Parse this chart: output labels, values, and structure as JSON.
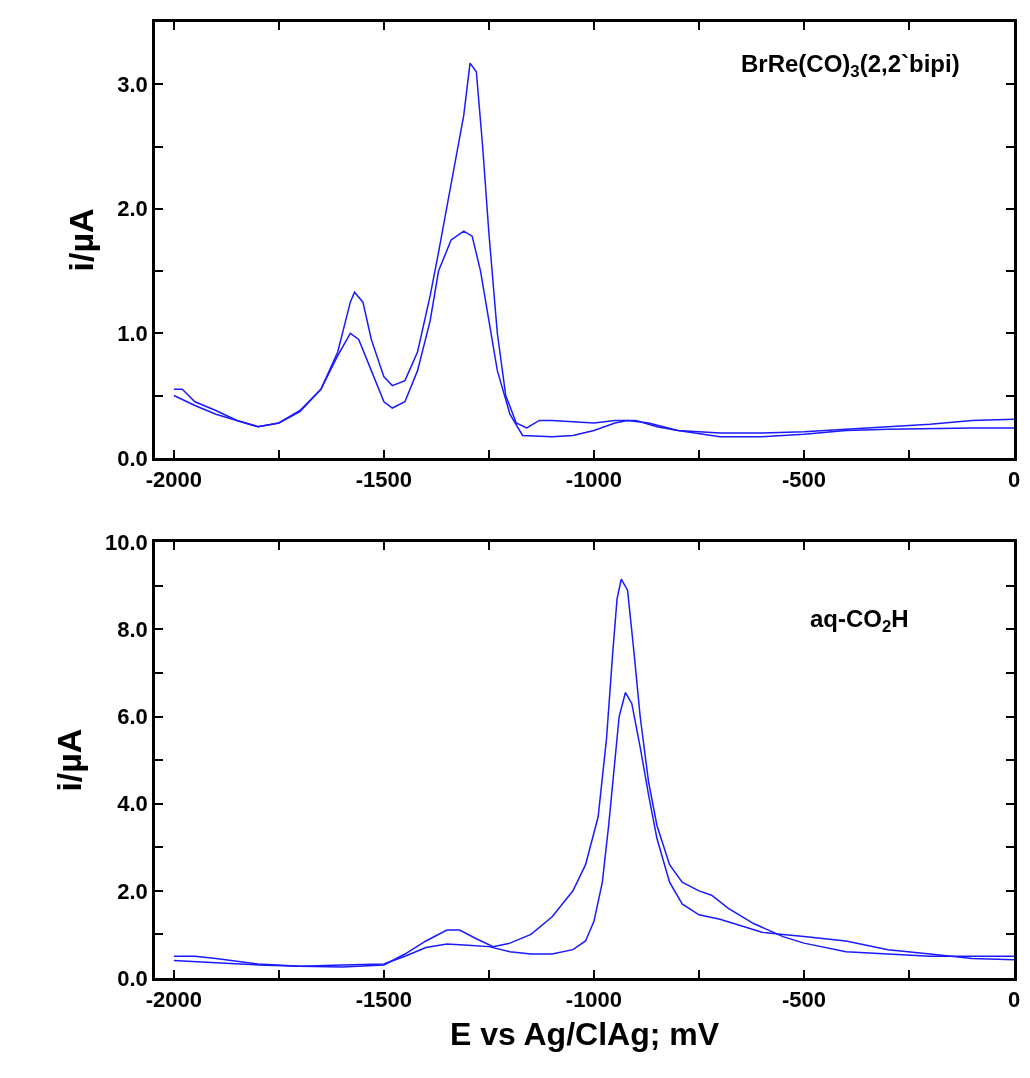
{
  "chart_data": [
    {
      "type": "line",
      "ylabel": "i/µA",
      "annotations": [
        "BrRe(CO)$_{3}$(2,2`bipi)"
      ],
      "xlim": [
        -2045,
        0
      ],
      "xticks": [
        -2000,
        {
          "value": -1750,
          "label": null
        },
        -1500,
        {
          "value": -1250,
          "label": null
        },
        -1000,
        {
          "value": -750,
          "label": null
        },
        -500,
        {
          "value": -250,
          "label": null
        },
        0
      ],
      "ylim": [
        0,
        3.5
      ],
      "yticks": [
        {
          "value": 0,
          "label": "0.0"
        },
        {
          "value": 0.5,
          "label": null
        },
        {
          "value": 1,
          "label": "1.0"
        },
        {
          "value": 1.5,
          "label": null
        },
        {
          "value": 2,
          "label": "2.0"
        },
        {
          "value": 2.5,
          "label": null
        },
        {
          "value": 3,
          "label": "3.0"
        }
      ],
      "marker": "none",
      "line_style": "solid",
      "series": [
        {
          "color": "#1a1aff",
          "x": [
            -2000,
            -1980,
            -1950,
            -1900,
            -1850,
            -1800,
            -1750,
            -1700,
            -1650,
            -1610,
            -1580,
            -1570,
            -1550,
            -1530,
            -1500,
            -1480,
            -1450,
            -1420,
            -1390,
            -1370,
            -1340,
            -1310,
            -1295,
            -1280,
            -1265,
            -1250,
            -1230,
            -1210,
            -1185,
            -1160,
            -1130,
            -1100,
            -1000,
            -950,
            -900,
            -850,
            -800,
            -700,
            -600,
            -500,
            -300,
            -200,
            -100,
            0
          ],
          "values": [
            0.55,
            0.55,
            0.45,
            0.38,
            0.3,
            0.25,
            0.28,
            0.37,
            0.55,
            0.85,
            1.25,
            1.33,
            1.25,
            0.95,
            0.65,
            0.58,
            0.62,
            0.85,
            1.3,
            1.65,
            2.2,
            2.75,
            3.17,
            3.1,
            2.5,
            1.8,
            1.0,
            0.5,
            0.28,
            0.24,
            0.3,
            0.3,
            0.28,
            0.3,
            0.3,
            0.25,
            0.22,
            0.2,
            0.2,
            0.21,
            0.25,
            0.27,
            0.3,
            0.31
          ]
        },
        {
          "color": "#1a1aff",
          "x": [
            -2000,
            -1950,
            -1900,
            -1850,
            -1800,
            -1750,
            -1700,
            -1650,
            -1610,
            -1580,
            -1560,
            -1530,
            -1500,
            -1480,
            -1450,
            -1420,
            -1390,
            -1370,
            -1340,
            -1310,
            -1290,
            -1270,
            -1250,
            -1230,
            -1200,
            -1170,
            -1100,
            -1050,
            -1000,
            -950,
            -920,
            -870,
            -800,
            -700,
            -600,
            -500,
            -400,
            -300,
            -100,
            0
          ],
          "values": [
            0.5,
            0.42,
            0.35,
            0.3,
            0.25,
            0.28,
            0.38,
            0.55,
            0.82,
            1.0,
            0.95,
            0.7,
            0.45,
            0.4,
            0.45,
            0.7,
            1.1,
            1.5,
            1.75,
            1.82,
            1.78,
            1.5,
            1.1,
            0.7,
            0.35,
            0.18,
            0.17,
            0.18,
            0.22,
            0.28,
            0.3,
            0.28,
            0.22,
            0.17,
            0.17,
            0.19,
            0.22,
            0.23,
            0.24,
            0.24
          ]
        }
      ]
    },
    {
      "type": "line",
      "ylabel": "i/µA",
      "xlabel": "E vs Ag/ClAg; mV",
      "annotations": [
        "aq-CO$_{2}$H"
      ],
      "xlim": [
        -2045,
        0
      ],
      "xticks": [
        -2000,
        {
          "value": -1750,
          "label": null
        },
        -1500,
        {
          "value": -1250,
          "label": null
        },
        -1000,
        {
          "value": -750,
          "label": null
        },
        -500,
        {
          "value": -250,
          "label": null
        },
        0
      ],
      "ylim": [
        0,
        10
      ],
      "yticks": [
        {
          "value": 0,
          "label": "0.0"
        },
        {
          "value": 1,
          "label": null
        },
        {
          "value": 2,
          "label": "2.0"
        },
        {
          "value": 3,
          "label": null
        },
        {
          "value": 4,
          "label": "4.0"
        },
        {
          "value": 5,
          "label": null
        },
        {
          "value": 6,
          "label": "6.0"
        },
        {
          "value": 7,
          "label": null
        },
        {
          "value": 8,
          "label": "8.0"
        },
        {
          "value": 9,
          "label": null
        },
        {
          "value": 10,
          "label": "10.0"
        }
      ],
      "marker": "none",
      "line_style": "solid",
      "series": [
        {
          "color": "#1a1aff",
          "x": [
            -2000,
            -1900,
            -1800,
            -1700,
            -1600,
            -1500,
            -1450,
            -1400,
            -1350,
            -1320,
            -1280,
            -1240,
            -1200,
            -1150,
            -1100,
            -1050,
            -1020,
            -990,
            -970,
            -955,
            -945,
            -935,
            -920,
            -905,
            -890,
            -870,
            -850,
            -820,
            -790,
            -750,
            -720,
            -680,
            -620,
            -550,
            -500,
            -400,
            -300,
            -200,
            -100,
            0
          ],
          "values": [
            0.4,
            0.35,
            0.3,
            0.27,
            0.25,
            0.3,
            0.55,
            0.85,
            1.1,
            1.1,
            0.9,
            0.72,
            0.8,
            1.0,
            1.4,
            2.0,
            2.6,
            3.7,
            5.5,
            7.5,
            8.7,
            9.15,
            8.9,
            7.5,
            6.0,
            4.5,
            3.5,
            2.6,
            2.2,
            2.0,
            1.9,
            1.6,
            1.25,
            0.95,
            0.8,
            0.6,
            0.55,
            0.5,
            0.5,
            0.5
          ]
        },
        {
          "color": "#1a1aff",
          "x": [
            -2000,
            -1950,
            -1900,
            -1800,
            -1700,
            -1600,
            -1500,
            -1450,
            -1400,
            -1350,
            -1300,
            -1250,
            -1200,
            -1150,
            -1100,
            -1050,
            -1020,
            -1000,
            -980,
            -965,
            -950,
            -940,
            -925,
            -910,
            -890,
            -870,
            -850,
            -820,
            -790,
            -750,
            -700,
            -650,
            -600,
            -550,
            -500,
            -400,
            -300,
            -200,
            -100,
            0
          ],
          "values": [
            0.5,
            0.5,
            0.45,
            0.32,
            0.27,
            0.3,
            0.32,
            0.5,
            0.7,
            0.78,
            0.75,
            0.72,
            0.6,
            0.55,
            0.55,
            0.65,
            0.85,
            1.3,
            2.2,
            3.5,
            5.0,
            6.0,
            6.55,
            6.3,
            5.3,
            4.2,
            3.2,
            2.2,
            1.7,
            1.45,
            1.35,
            1.2,
            1.05,
            1.0,
            0.95,
            0.85,
            0.65,
            0.55,
            0.45,
            0.42
          ]
        }
      ]
    }
  ]
}
